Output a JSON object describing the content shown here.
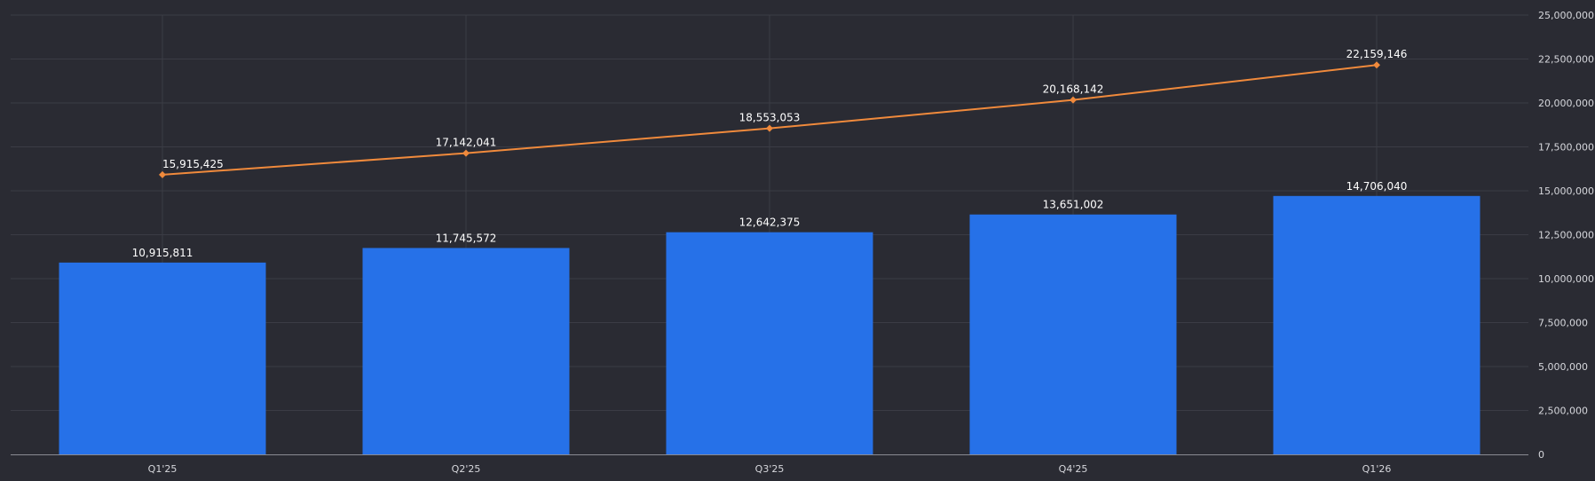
{
  "chart_data": {
    "type": "bar",
    "categories": [
      "Q1'25",
      "Q2'25",
      "Q3'25",
      "Q4'25",
      "Q1'26"
    ],
    "series": [
      {
        "type": "bar",
        "values": [
          10915811,
          11745572,
          12642375,
          13651002,
          14706040
        ],
        "labels": [
          "10,915,811",
          "11,745,572",
          "12,642,375",
          "13,651,002",
          "14,706,040"
        ],
        "color": "#2671e8"
      },
      {
        "type": "line",
        "values": [
          15915425,
          17142041,
          18553053,
          20168142,
          22159146
        ],
        "labels": [
          "15,915,425",
          "17,142,041",
          "18,553,053",
          "20,168,142",
          "22,159,146"
        ],
        "color": "#f08a3c"
      }
    ],
    "y_axis": {
      "position": "right",
      "min": 0,
      "max": 25000000,
      "ticks": [
        0,
        2500000,
        5000000,
        7500000,
        10000000,
        12500000,
        15000000,
        17500000,
        20000000,
        22500000,
        25000000
      ],
      "tick_labels": [
        "0",
        "2,500,000",
        "5,000,000",
        "7,500,000",
        "10,000,000",
        "12,500,000",
        "15,000,000",
        "17,500,000",
        "20,000,000",
        "22,500,000",
        "25,000,000"
      ]
    },
    "grid": true,
    "title": "",
    "xlabel": "",
    "ylabel": ""
  },
  "colors": {
    "background": "#2a2b33",
    "grid": "#3b3c45",
    "axis": "#8a8b93"
  }
}
